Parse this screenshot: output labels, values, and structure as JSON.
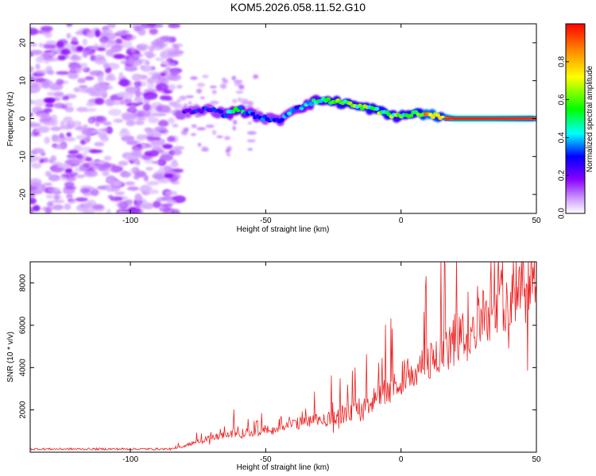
{
  "title": "KOM5.2026.058.11.52.G10",
  "chart_data": [
    {
      "type": "heatmap",
      "title": "KOM5.2026.058.11.52.G10",
      "xlabel": "Height of straight line (km)",
      "ylabel": "Frequency (Hz)",
      "xlim": [
        -137,
        50
      ],
      "ylim": [
        -25,
        25
      ],
      "x_ticks": [
        -100,
        -50,
        0,
        50
      ],
      "y_ticks": [
        -20,
        -10,
        0,
        10,
        20
      ],
      "colorbar": {
        "label": "Normalized spectral amplitude",
        "range": [
          0,
          1
        ],
        "ticks": [
          "0.0",
          "0.2",
          "0.4",
          "0.6",
          "0.8"
        ],
        "colors": [
          "#ffffff",
          "#cc99ff",
          "#8800ff",
          "#0000ff",
          "#00ffff",
          "#00ff00",
          "#ffff00",
          "#ff8800",
          "#ff0000"
        ]
      },
      "ridge": {
        "description": "narrowband signal track",
        "x": [
          -80,
          -75,
          -70,
          -65,
          -60,
          -55,
          -50,
          -45,
          -40,
          -35,
          -30,
          -25,
          -20,
          -15,
          -10,
          -5,
          0,
          5,
          10,
          15,
          20,
          30,
          40,
          50
        ],
        "freq": [
          1.5,
          2.0,
          2.5,
          1.0,
          2.5,
          1.0,
          0.0,
          -0.5,
          2.5,
          3.5,
          5.0,
          4.5,
          4.0,
          3.0,
          2.5,
          1.0,
          0.5,
          1.5,
          1.0,
          0.5,
          0.0,
          0.0,
          0.0,
          0.0
        ],
        "amplitude": [
          0.25,
          0.3,
          0.3,
          0.35,
          0.5,
          0.35,
          0.3,
          0.35,
          0.35,
          0.4,
          0.5,
          0.55,
          0.6,
          0.55,
          0.6,
          0.6,
          0.55,
          0.6,
          0.8,
          0.7,
          0.95,
          0.95,
          0.9,
          0.85
        ]
      },
      "noise_region_x": [
        -137,
        -82
      ]
    },
    {
      "type": "line",
      "xlabel": "Height of straight line (km)",
      "ylabel": "SNR (10 * v/v)",
      "xlim": [
        -137,
        50
      ],
      "ylim": [
        0,
        9000
      ],
      "x_ticks": [
        -100,
        -50,
        0,
        50
      ],
      "y_ticks": [
        2000,
        4000,
        6000,
        8000
      ],
      "line_color": "#ee2222",
      "trend": {
        "x": [
          -137,
          -100,
          -85,
          -80,
          -70,
          -60,
          -50,
          -40,
          -30,
          -20,
          -10,
          -5,
          0,
          10,
          20,
          30,
          40,
          45,
          50
        ],
        "y": [
          150,
          150,
          150,
          300,
          700,
          900,
          1000,
          1300,
          1500,
          1800,
          2500,
          3000,
          3500,
          4200,
          5200,
          6500,
          7500,
          8200,
          8500
        ]
      }
    }
  ]
}
